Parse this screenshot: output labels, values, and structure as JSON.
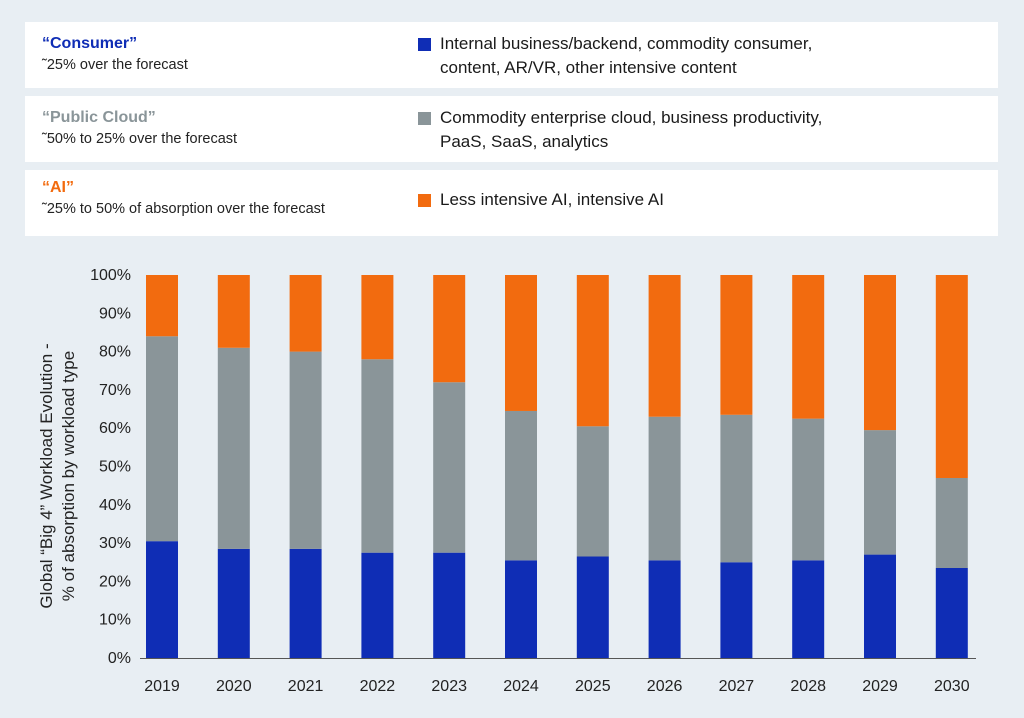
{
  "legend": [
    {
      "title": "“Consumer”",
      "desc": "˜25% over the forecast",
      "items_line1": "Internal business/backend, commodity consumer,",
      "items_line2": "content, AR/VR, other intensive content",
      "color": "#0f2db5"
    },
    {
      "title": "“Public Cloud”",
      "desc": "˜50% to 25% over the forecast",
      "items_line1": "Commodity enterprise cloud, business productivity,",
      "items_line2": "PaaS, SaaS, analytics",
      "color": "#8a9599"
    },
    {
      "title": "“AI”",
      "desc": "˜25% to 50% of absorption over the forecast",
      "items_line1": "Less intensive AI, intensive AI",
      "items_line2": "",
      "color": "#f26b0f"
    }
  ],
  "chart_data": {
    "type": "bar",
    "stacked": true,
    "categories": [
      "2019",
      "2020",
      "2021",
      "2022",
      "2023",
      "2024",
      "2025",
      "2026",
      "2027",
      "2028",
      "2029",
      "2030"
    ],
    "series": [
      {
        "name": "Consumer",
        "color": "#0f2db5",
        "values": [
          30.5,
          28.5,
          28.5,
          27.5,
          27.5,
          25.5,
          26.5,
          25.5,
          25,
          25.5,
          27,
          23.5
        ]
      },
      {
        "name": "Public Cloud",
        "color": "#8a9599",
        "values": [
          53.5,
          52.5,
          51.5,
          50.5,
          44.5,
          39,
          34,
          37.5,
          38.5,
          37,
          32.5,
          23.5
        ]
      },
      {
        "name": "AI",
        "color": "#f26b0f",
        "values": [
          16,
          19,
          20,
          22,
          28,
          35.5,
          39.5,
          37,
          36.5,
          37.5,
          40.5,
          53
        ]
      }
    ],
    "ylabel_line1": "Global “Big 4” Workload Evolution -",
    "ylabel_line2": "% of absorption by workload type",
    "ylim": [
      0,
      100
    ],
    "yticks": [
      "0%",
      "10%",
      "20%",
      "30%",
      "40%",
      "50%",
      "60%",
      "70%",
      "80%",
      "90%",
      "100%"
    ],
    "grid": false
  }
}
